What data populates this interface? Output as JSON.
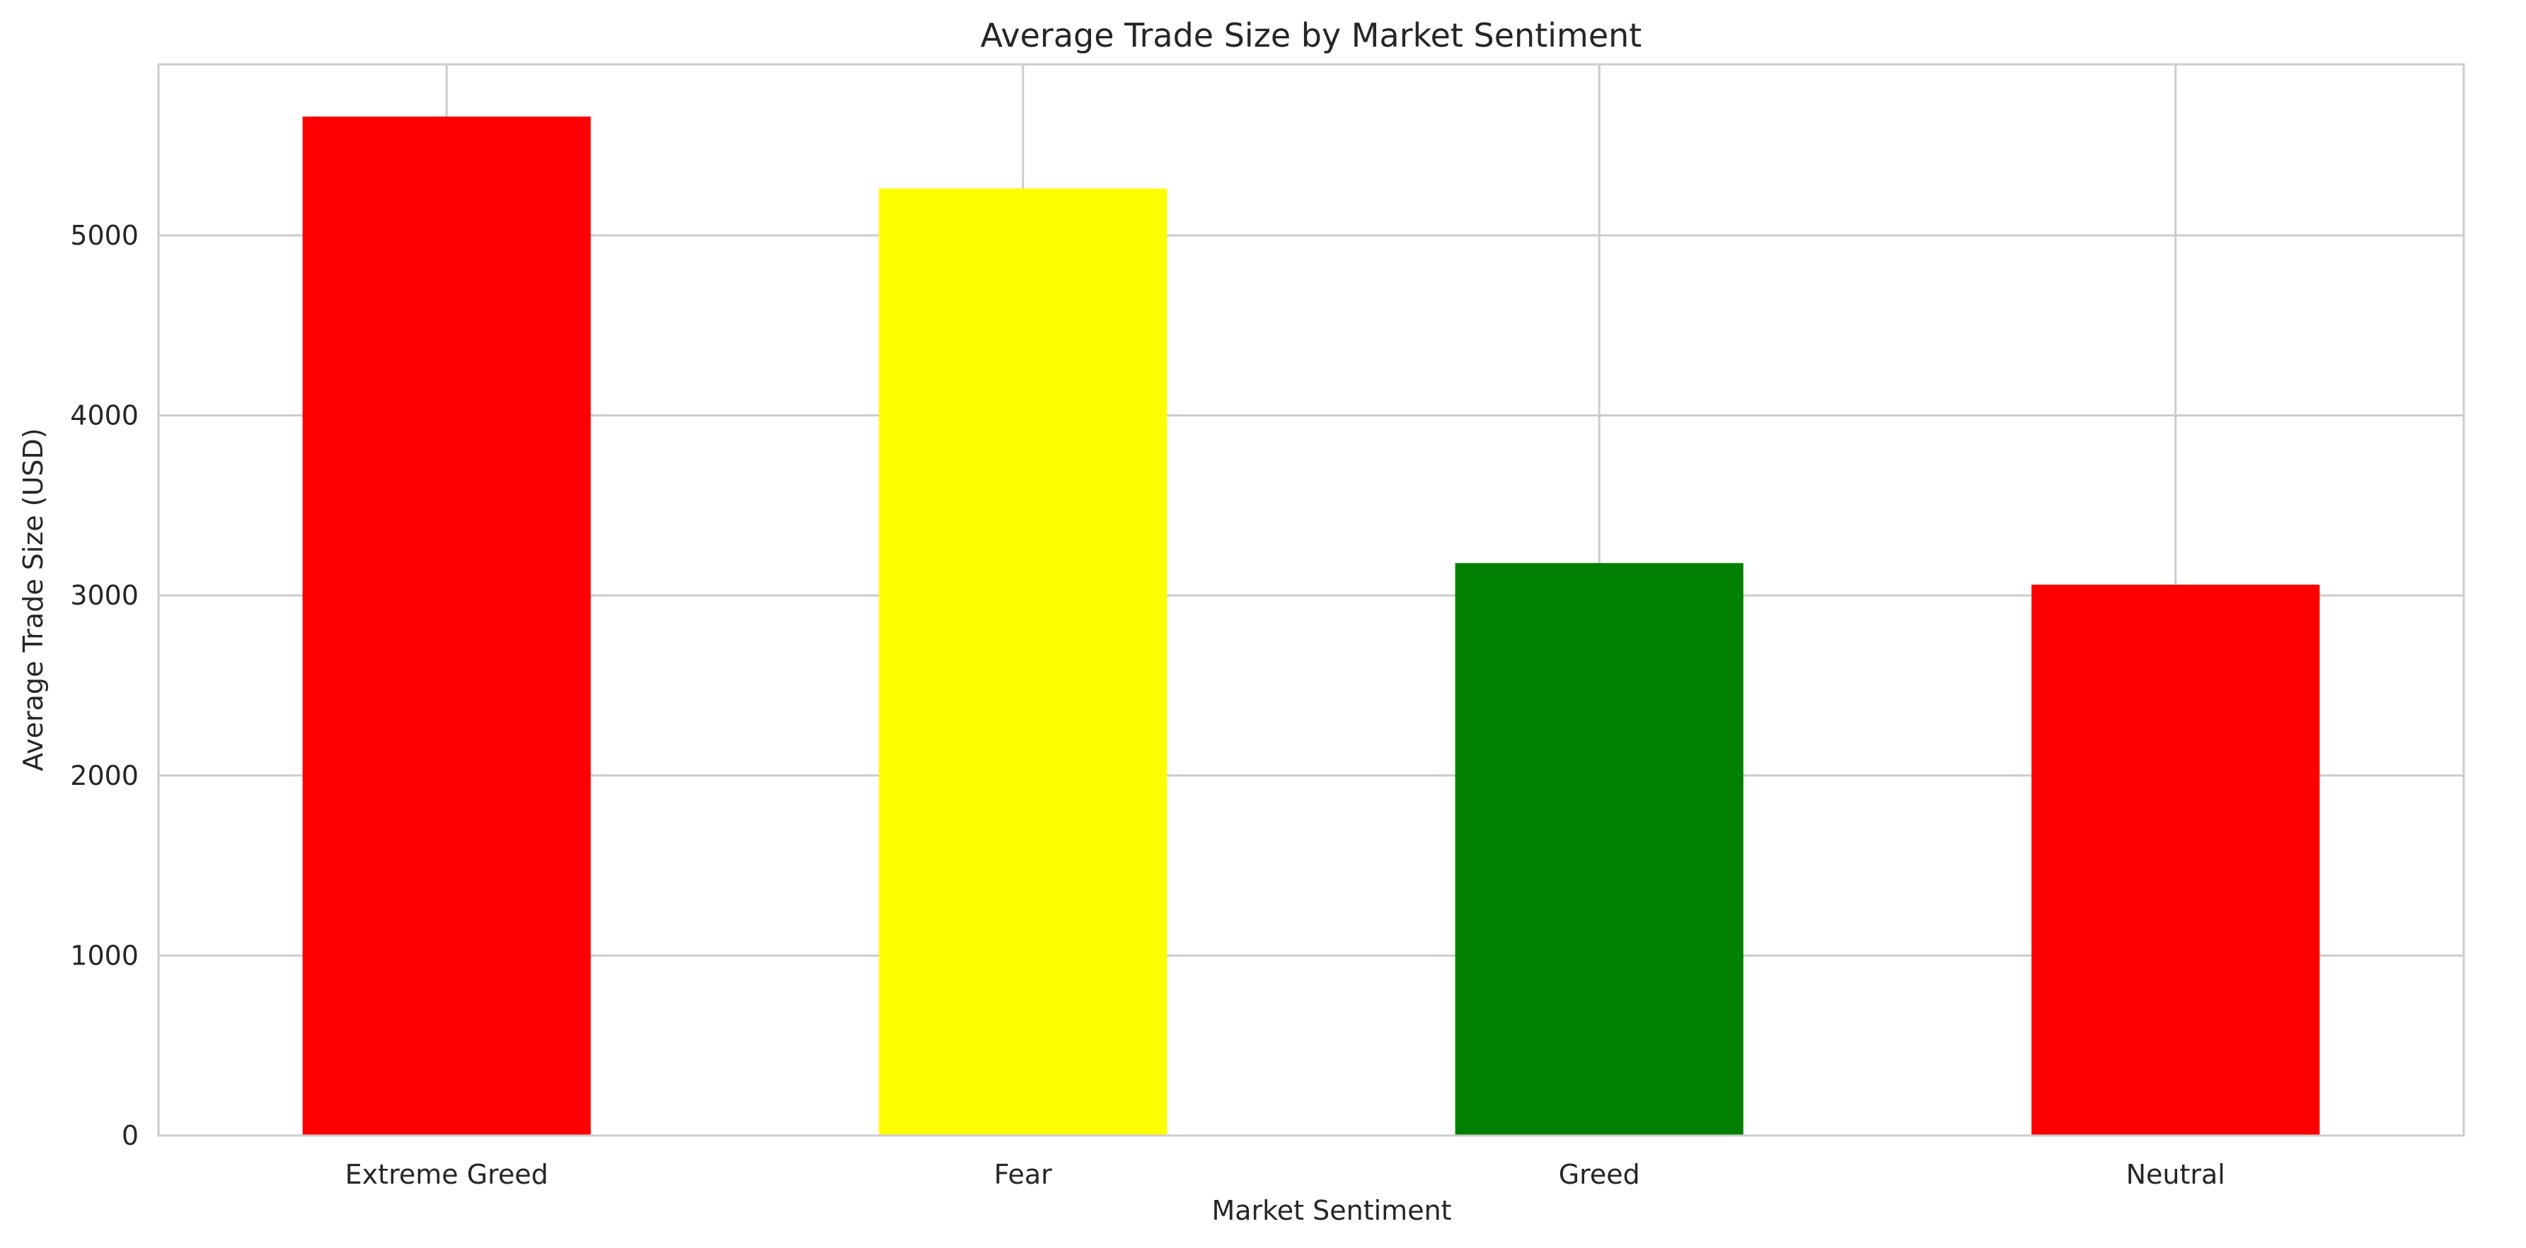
{
  "chart_data": {
    "type": "bar",
    "title": "Average Trade Size by Market Sentiment",
    "xlabel": "Market Sentiment",
    "ylabel": "Average Trade Size (USD)",
    "categories": [
      "Extreme Greed",
      "Fear",
      "Greed",
      "Neutral"
    ],
    "values": [
      5660,
      5260,
      3180,
      3060
    ],
    "colors": [
      "#ff0000",
      "#ffff00",
      "#008000",
      "#ff0000"
    ],
    "ylim": [
      0,
      5950
    ],
    "yticks": [
      0,
      1000,
      2000,
      3000,
      4000,
      5000
    ],
    "grid": true,
    "legend": "none"
  }
}
